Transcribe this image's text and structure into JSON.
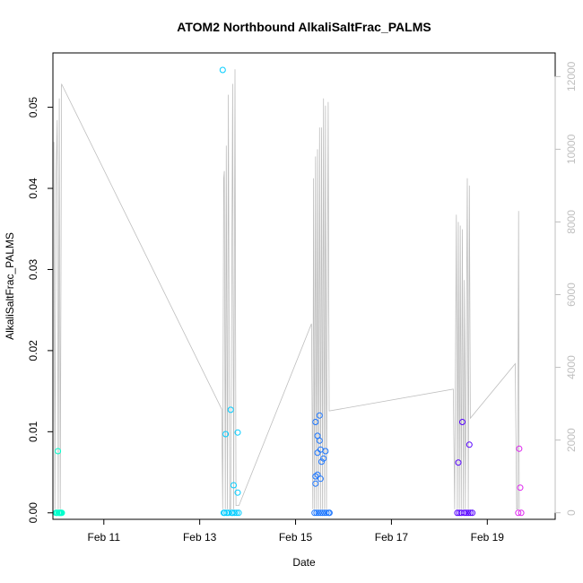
{
  "chart_data": {
    "type": "scatter",
    "title": "ATOM2 Northbound AlkaliSaltFrac_PALMS",
    "xlabel": "Date",
    "ylabel": "AlkaliSaltFrac_PALMS",
    "xlim": [
      "2017-02-09T22:30",
      "2017-02-20T10:00"
    ],
    "ylim": [
      -0.0008,
      0.0567
    ],
    "y2lim": [
      -180,
      12650
    ],
    "x_ticks": [
      "2017-02-11",
      "2017-02-13",
      "2017-02-15",
      "2017-02-17",
      "2017-02-19"
    ],
    "x_tick_labels": [
      "Feb 11",
      "Feb 13",
      "Feb 15",
      "Feb 17",
      "Feb 19"
    ],
    "y_ticks": [
      0.0,
      0.01,
      0.02,
      0.03,
      0.04,
      0.05
    ],
    "y_tick_labels": [
      "0.00",
      "0.01",
      "0.02",
      "0.03",
      "0.04",
      "0.05"
    ],
    "y2_ticks": [
      0,
      2000,
      4000,
      6000,
      8000,
      10000,
      12000
    ],
    "y2_tick_labels": [
      "0",
      "2000",
      "4000",
      "6000",
      "8000",
      "10000",
      "12000"
    ],
    "grid": false,
    "legend": "none",
    "colors": {
      "altitude_line": "#bebebe",
      "axes": "#000000",
      "right_axis": "#bfbfbf"
    },
    "points": [
      {
        "x": "2017-02-10T00:00",
        "y": 0.0,
        "color": "#00ffcc"
      },
      {
        "x": "2017-02-10T00:20",
        "y": 0.0,
        "color": "#00ffcc"
      },
      {
        "x": "2017-02-10T00:40",
        "y": 0.0,
        "color": "#00ffcc"
      },
      {
        "x": "2017-02-10T01:00",
        "y": 0.0076,
        "color": "#00ffcc"
      },
      {
        "x": "2017-02-10T01:20",
        "y": 0.0,
        "color": "#00ffcc"
      },
      {
        "x": "2017-02-10T01:40",
        "y": 0.0,
        "color": "#00ffcc"
      },
      {
        "x": "2017-02-10T02:00",
        "y": 0.0,
        "color": "#00ffcc"
      },
      {
        "x": "2017-02-10T02:20",
        "y": 0.0,
        "color": "#00ffcc"
      },
      {
        "x": "2017-02-10T02:40",
        "y": 0.0,
        "color": "#00ffcc"
      },
      {
        "x": "2017-02-10T03:00",
        "y": 0.0,
        "color": "#00ffcc"
      },
      {
        "x": "2017-02-13T11:30",
        "y": 0.0546,
        "color": "#00ccff"
      },
      {
        "x": "2017-02-13T12:00",
        "y": 0.0,
        "color": "#00ccff"
      },
      {
        "x": "2017-02-13T12:30",
        "y": 0.0,
        "color": "#00ccff"
      },
      {
        "x": "2017-02-13T13:00",
        "y": 0.0097,
        "color": "#00ccff"
      },
      {
        "x": "2017-02-13T13:30",
        "y": 0.0,
        "color": "#00ccff"
      },
      {
        "x": "2017-02-13T14:30",
        "y": 0.0,
        "color": "#00ccff"
      },
      {
        "x": "2017-02-13T15:30",
        "y": 0.0127,
        "color": "#00ccff"
      },
      {
        "x": "2017-02-13T16:00",
        "y": 0.0,
        "color": "#00ccff"
      },
      {
        "x": "2017-02-13T16:30",
        "y": 0.0,
        "color": "#00ccff"
      },
      {
        "x": "2017-02-13T17:00",
        "y": 0.0034,
        "color": "#00ccff"
      },
      {
        "x": "2017-02-13T17:30",
        "y": 0.0,
        "color": "#00ccff"
      },
      {
        "x": "2017-02-13T18:30",
        "y": 0.0,
        "color": "#00ccff"
      },
      {
        "x": "2017-02-13T19:00",
        "y": 0.0099,
        "color": "#00ccff"
      },
      {
        "x": "2017-02-13T19:00",
        "y": 0.0025,
        "color": "#00ccff"
      },
      {
        "x": "2017-02-13T19:30",
        "y": 0.0,
        "color": "#00ccff"
      },
      {
        "x": "2017-02-15T09:30",
        "y": 0.0,
        "color": "#1a75ff"
      },
      {
        "x": "2017-02-15T10:00",
        "y": 0.0112,
        "color": "#1a75ff"
      },
      {
        "x": "2017-02-15T10:00",
        "y": 0.0045,
        "color": "#1a75ff"
      },
      {
        "x": "2017-02-15T10:00",
        "y": 0.0036,
        "color": "#1a75ff"
      },
      {
        "x": "2017-02-15T10:30",
        "y": 0.0,
        "color": "#1a75ff"
      },
      {
        "x": "2017-02-15T11:00",
        "y": 0.0095,
        "color": "#1a75ff"
      },
      {
        "x": "2017-02-15T11:00",
        "y": 0.0074,
        "color": "#1a75ff"
      },
      {
        "x": "2017-02-15T11:00",
        "y": 0.0047,
        "color": "#1a75ff"
      },
      {
        "x": "2017-02-15T11:30",
        "y": 0.0,
        "color": "#1a75ff"
      },
      {
        "x": "2017-02-15T12:00",
        "y": 0.012,
        "color": "#1a75ff"
      },
      {
        "x": "2017-02-15T12:00",
        "y": 0.0089,
        "color": "#1a75ff"
      },
      {
        "x": "2017-02-15T12:30",
        "y": 0.0078,
        "color": "#1a75ff"
      },
      {
        "x": "2017-02-15T12:30",
        "y": 0.0042,
        "color": "#1a75ff"
      },
      {
        "x": "2017-02-15T12:30",
        "y": 0.0,
        "color": "#1a75ff"
      },
      {
        "x": "2017-02-15T13:00",
        "y": 0.0063,
        "color": "#1a75ff"
      },
      {
        "x": "2017-02-15T13:30",
        "y": 0.0,
        "color": "#1a75ff"
      },
      {
        "x": "2017-02-15T14:00",
        "y": 0.0067,
        "color": "#1a75ff"
      },
      {
        "x": "2017-02-15T14:30",
        "y": 0.0,
        "color": "#1a75ff"
      },
      {
        "x": "2017-02-15T15:00",
        "y": 0.0076,
        "color": "#1a75ff"
      },
      {
        "x": "2017-02-15T15:30",
        "y": 0.0,
        "color": "#1a75ff"
      },
      {
        "x": "2017-02-15T16:30",
        "y": 0.0,
        "color": "#1a75ff"
      },
      {
        "x": "2017-02-15T17:00",
        "y": 0.0,
        "color": "#1a75ff"
      },
      {
        "x": "2017-02-18T09:00",
        "y": 0.0,
        "color": "#5500ff"
      },
      {
        "x": "2017-02-18T09:30",
        "y": 0.0062,
        "color": "#5500ff"
      },
      {
        "x": "2017-02-18T10:00",
        "y": 0.0,
        "color": "#5500ff"
      },
      {
        "x": "2017-02-18T11:00",
        "y": 0.0,
        "color": "#5500ff"
      },
      {
        "x": "2017-02-18T11:30",
        "y": 0.0112,
        "color": "#5500ff"
      },
      {
        "x": "2017-02-18T12:30",
        "y": 0.0,
        "color": "#5500ff"
      },
      {
        "x": "2017-02-18T13:30",
        "y": 0.0,
        "color": "#5500ff"
      },
      {
        "x": "2017-02-18T14:30",
        "y": 0.0,
        "color": "#5500ff"
      },
      {
        "x": "2017-02-18T15:00",
        "y": 0.0084,
        "color": "#5500ff"
      },
      {
        "x": "2017-02-18T15:30",
        "y": 0.0,
        "color": "#5500ff"
      },
      {
        "x": "2017-02-18T16:30",
        "y": 0.0,
        "color": "#5500ff"
      },
      {
        "x": "2017-02-19T15:30",
        "y": 0.0,
        "color": "#dd22ee"
      },
      {
        "x": "2017-02-19T16:00",
        "y": 0.0079,
        "color": "#dd22ee"
      },
      {
        "x": "2017-02-19T16:30",
        "y": 0.0031,
        "color": "#dd22ee"
      },
      {
        "x": "2017-02-19T17:00",
        "y": 0.0,
        "color": "#dd22ee"
      }
    ],
    "altitude": [
      [
        "2017-02-09T23:00",
        10200
      ],
      [
        "2017-02-09T23:30",
        100
      ],
      [
        "2017-02-10T00:00",
        9000
      ],
      [
        "2017-02-10T00:40",
        10800
      ],
      [
        "2017-02-10T01:10",
        100
      ],
      [
        "2017-02-10T01:40",
        11400
      ],
      [
        "2017-02-10T02:10",
        100
      ],
      [
        "2017-02-10T02:50",
        11800
      ],
      [
        "2017-02-13T11:00",
        2850
      ],
      [
        "2017-02-13T11:30",
        100
      ],
      [
        "2017-02-13T12:00",
        9200
      ],
      [
        "2017-02-13T12:20",
        9400
      ],
      [
        "2017-02-13T12:50",
        100
      ],
      [
        "2017-02-13T13:20",
        10100
      ],
      [
        "2017-02-13T13:50",
        100
      ],
      [
        "2017-02-13T14:20",
        11500
      ],
      [
        "2017-02-13T15:00",
        100
      ],
      [
        "2017-02-13T15:30",
        100
      ],
      [
        "2017-02-13T16:30",
        11800
      ],
      [
        "2017-02-13T17:00",
        100
      ],
      [
        "2017-02-13T17:40",
        12200
      ],
      [
        "2017-02-13T18:10",
        200
      ],
      [
        "2017-02-13T19:40",
        200
      ],
      [
        "2017-02-15T08:00",
        5200
      ],
      [
        "2017-02-15T08:40",
        100
      ],
      [
        "2017-02-15T09:00",
        9200
      ],
      [
        "2017-02-15T09:30",
        100
      ],
      [
        "2017-02-15T10:00",
        9800
      ],
      [
        "2017-02-15T10:30",
        100
      ],
      [
        "2017-02-15T11:00",
        10000
      ],
      [
        "2017-02-15T11:30",
        100
      ],
      [
        "2017-02-15T12:00",
        10600
      ],
      [
        "2017-02-15T12:30",
        100
      ],
      [
        "2017-02-15T13:00",
        10600
      ],
      [
        "2017-02-15T13:30",
        100
      ],
      [
        "2017-02-15T14:00",
        11400
      ],
      [
        "2017-02-15T14:30",
        100
      ],
      [
        "2017-02-15T15:00",
        11200
      ],
      [
        "2017-02-15T15:30",
        100
      ],
      [
        "2017-02-15T16:20",
        11300
      ],
      [
        "2017-02-15T16:50",
        2800
      ],
      [
        "2017-02-18T07:00",
        3400
      ],
      [
        "2017-02-18T07:40",
        100
      ],
      [
        "2017-02-18T08:30",
        8200
      ],
      [
        "2017-02-18T09:00",
        100
      ],
      [
        "2017-02-18T09:30",
        8000
      ],
      [
        "2017-02-18T10:00",
        100
      ],
      [
        "2017-02-18T10:30",
        7900
      ],
      [
        "2017-02-18T11:00",
        100
      ],
      [
        "2017-02-18T11:30",
        7800
      ],
      [
        "2017-02-18T12:00",
        100
      ],
      [
        "2017-02-18T12:30",
        6400
      ],
      [
        "2017-02-18T13:00",
        100
      ],
      [
        "2017-02-18T14:00",
        9200
      ],
      [
        "2017-02-18T14:30",
        100
      ],
      [
        "2017-02-18T15:00",
        9000
      ],
      [
        "2017-02-18T15:30",
        2600
      ],
      [
        "2017-02-19T14:00",
        4100
      ],
      [
        "2017-02-19T14:40",
        100
      ],
      [
        "2017-02-19T15:10",
        100
      ],
      [
        "2017-02-19T15:40",
        8300
      ],
      [
        "2017-02-19T16:00",
        100
      ]
    ]
  }
}
